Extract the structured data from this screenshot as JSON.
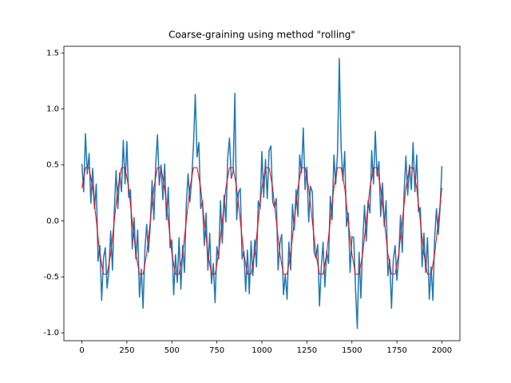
{
  "chart_data": {
    "type": "line",
    "title": "Coarse-graining using method \"rolling\"",
    "xlim": [
      -100,
      2100
    ],
    "ylim": [
      -1.07,
      1.56
    ],
    "xticks": [
      0,
      250,
      500,
      750,
      1000,
      1250,
      1500,
      1750,
      2000
    ],
    "yticks": [
      {
        "value": -1.0,
        "label": "-1.0"
      },
      -0.5,
      {
        "value": 0.0,
        "label": "0.0"
      },
      0.5,
      {
        "value": 1.0,
        "label": "1.0"
      },
      1.5
    ],
    "series": [
      {
        "color": "#1f77b4",
        "x": [
          0,
          10,
          20,
          30,
          40,
          50,
          60,
          70,
          80,
          90,
          100,
          110,
          120,
          130,
          140,
          150,
          160,
          170,
          180,
          190,
          200,
          210,
          220,
          230,
          240,
          250,
          260,
          270,
          280,
          290,
          300,
          310,
          320,
          330,
          340,
          350,
          360,
          370,
          380,
          390,
          400,
          410,
          420,
          430,
          440,
          450,
          460,
          470,
          480,
          490,
          500,
          510,
          520,
          530,
          540,
          550,
          560,
          570,
          580,
          590,
          600,
          610,
          620,
          630,
          640,
          650,
          660,
          670,
          680,
          690,
          700,
          710,
          720,
          730,
          740,
          750,
          760,
          770,
          780,
          790,
          800,
          810,
          820,
          830,
          840,
          850,
          860,
          870,
          880,
          890,
          900,
          910,
          920,
          930,
          940,
          950,
          960,
          970,
          980,
          990,
          1000,
          1010,
          1020,
          1030,
          1040,
          1050,
          1060,
          1070,
          1080,
          1090,
          1100,
          1110,
          1120,
          1130,
          1140,
          1150,
          1160,
          1170,
          1180,
          1190,
          1200,
          1210,
          1220,
          1230,
          1240,
          1250,
          1260,
          1270,
          1280,
          1290,
          1300,
          1310,
          1320,
          1330,
          1340,
          1350,
          1360,
          1370,
          1380,
          1390,
          1400,
          1410,
          1420,
          1430,
          1440,
          1450,
          1460,
          1470,
          1480,
          1490,
          1500,
          1510,
          1520,
          1530,
          1540,
          1550,
          1560,
          1570,
          1580,
          1590,
          1600,
          1610,
          1620,
          1630,
          1640,
          1650,
          1660,
          1670,
          1680,
          1690,
          1700,
          1710,
          1720,
          1730,
          1740,
          1750,
          1760,
          1770,
          1780,
          1790,
          1800,
          1810,
          1820,
          1830,
          1840,
          1850,
          1860,
          1870,
          1880,
          1890,
          1900,
          1910,
          1920,
          1930,
          1940,
          1950,
          1960,
          1970,
          1980,
          1990,
          2000
        ],
        "values": [
          0.51,
          0.26,
          0.78,
          0.42,
          0.6,
          0.16,
          0.47,
          0.11,
          0.33,
          -0.36,
          -0.22,
          -0.71,
          -0.33,
          -0.24,
          -0.6,
          -0.45,
          -0.09,
          -0.44,
          0.09,
          0.45,
          0.11,
          0.43,
          0.26,
          0.72,
          0.33,
          0.71,
          0.21,
          0.28,
          -0.25,
          0.03,
          -0.34,
          -0.08,
          -0.68,
          -0.43,
          -0.78,
          -0.26,
          -0.03,
          -0.28,
          -0.04,
          0.36,
          0.01,
          0.5,
          0.77,
          0.32,
          0.5,
          0.19,
          0.51,
          0.01,
          0.3,
          -0.24,
          -0.17,
          -0.66,
          -0.3,
          -0.55,
          -0.15,
          -0.61,
          -0.22,
          -0.46,
          0.15,
          0.42,
          0.17,
          0.37,
          0.68,
          1.13,
          0.57,
          0.7,
          0.11,
          0.18,
          -0.22,
          0.07,
          -0.44,
          -0.11,
          -0.56,
          -0.38,
          -0.73,
          -0.23,
          -0.34,
          0.18,
          -0.2,
          0.23,
          -0.01,
          0.56,
          0.74,
          0.38,
          0.44,
          1.14,
          0.01,
          0.25,
          0.29,
          -0.34,
          -0.27,
          -0.63,
          -0.26,
          -0.65,
          -0.18,
          -0.49,
          -0.17,
          -0.41,
          0.18,
          0.11,
          0.62,
          0.21,
          0.55,
          0.2,
          0.63,
          0.67,
          0.17,
          0.12,
          0.2,
          -0.44,
          -0.2,
          -0.12,
          -0.66,
          -0.48,
          -0.7,
          -0.19,
          -0.44,
          0.15,
          -0.08,
          0.28,
          0.04,
          0.59,
          0.43,
          0.83,
          0.28,
          0.48,
          -0.01,
          0.31,
          0.26,
          -0.28,
          -0.33,
          -0.21,
          -0.76,
          -0.41,
          -0.19,
          -0.59,
          -0.27,
          -0.38,
          0.22,
          0.01,
          0.59,
          0.33,
          0.6,
          1.45,
          0.66,
          0.36,
          0.62,
          -0.05,
          0.07,
          -0.46,
          -0.14,
          -0.15,
          -0.6,
          -0.96,
          -0.28,
          -0.69,
          -0.2,
          0.14,
          -0.18,
          0.18,
          0.07,
          0.63,
          0.33,
          0.8,
          0.4,
          0.53,
          0.04,
          0.34,
          -0.05,
          0.18,
          -0.49,
          -0.34,
          -0.78,
          -0.35,
          -0.22,
          -0.53,
          -0.33,
          0.05,
          -0.28,
          0.25,
          0.58,
          0.23,
          0.5,
          0.28,
          0.7,
          0.26,
          0.59,
          0.08,
          0.12,
          -0.41,
          -0.11,
          -0.46,
          -0.15,
          -0.7,
          -0.41,
          -0.71,
          -0.14,
          0.11,
          -0.12,
          0.12,
          0.49
        ]
      },
      {
        "color": "#ff0000",
        "x": [
          0,
          20,
          40,
          60,
          80,
          100,
          120,
          140,
          160,
          180,
          200,
          220,
          240,
          260,
          280,
          300,
          320,
          340,
          360,
          380,
          400,
          420,
          440,
          460,
          480,
          500,
          520,
          540,
          560,
          580,
          600,
          620,
          640,
          660,
          680,
          700,
          720,
          740,
          760,
          780,
          800,
          820,
          840,
          860,
          880,
          900,
          920,
          940,
          960,
          980,
          1000,
          1020,
          1040,
          1060,
          1080,
          1100,
          1120,
          1140,
          1160,
          1180,
          1200,
          1220,
          1240,
          1260,
          1280,
          1300,
          1320,
          1340,
          1360,
          1380,
          1400,
          1420,
          1440,
          1460,
          1480,
          1500,
          1520,
          1540,
          1560,
          1580,
          1600,
          1620,
          1640,
          1660,
          1680,
          1700,
          1720,
          1740,
          1760,
          1780,
          1800,
          1820,
          1840,
          1860,
          1880,
          1900,
          1920,
          1940,
          1960,
          1980,
          2000
        ],
        "values": [
          0.294,
          0.476,
          0.476,
          0.294,
          0,
          -0.294,
          -0.476,
          -0.476,
          -0.294,
          0,
          0.294,
          0.476,
          0.476,
          0.294,
          0,
          -0.294,
          -0.476,
          -0.476,
          -0.294,
          0,
          0.294,
          0.476,
          0.476,
          0.294,
          0,
          -0.294,
          -0.476,
          -0.476,
          -0.294,
          0,
          0.294,
          0.476,
          0.476,
          0.294,
          0,
          -0.294,
          -0.476,
          -0.476,
          -0.294,
          0,
          0.294,
          0.476,
          0.476,
          0.294,
          0,
          -0.294,
          -0.476,
          -0.476,
          -0.294,
          0,
          0.294,
          0.476,
          0.476,
          0.294,
          0,
          -0.294,
          -0.476,
          -0.476,
          -0.294,
          0,
          0.294,
          0.476,
          0.476,
          0.294,
          0,
          -0.294,
          -0.476,
          -0.476,
          -0.294,
          0,
          0.294,
          0.476,
          0.476,
          0.294,
          0,
          -0.294,
          -0.476,
          -0.476,
          -0.294,
          0,
          0.294,
          0.476,
          0.476,
          0.294,
          0,
          -0.294,
          -0.476,
          -0.476,
          -0.294,
          0,
          0.294,
          0.476,
          0.476,
          0.294,
          0,
          -0.294,
          -0.476,
          -0.476,
          -0.294,
          0,
          0.294
        ]
      }
    ]
  }
}
